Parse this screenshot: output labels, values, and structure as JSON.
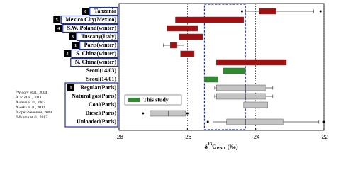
{
  "chart_data": {
    "type": "boxplot",
    "xlim": [
      -28,
      -22
    ],
    "xticks": [
      -28,
      -26,
      -24,
      -22
    ],
    "grid": true,
    "x_label": {
      "symbol": "δ",
      "sup": "13",
      "base": "C",
      "sub": "PBD",
      "unit": "(‰)"
    },
    "highlight": [
      -25.5,
      -24.3
    ],
    "legend": {
      "name": "This study",
      "color": "#2e8b2e"
    },
    "rows": [
      {
        "label": "Tanzania",
        "ref": "6",
        "color": "#a01010",
        "q1": -23.9,
        "q3": -23.4,
        "whisker_low": -24.3,
        "whisker_high": -22.3,
        "outliers": [
          -24.4,
          -22.1
        ]
      },
      {
        "label": "Mexico City(Mexico)",
        "ref": "5",
        "color": "#a01010",
        "q1": -26.35,
        "q3": -24.35
      },
      {
        "label": "S.W. Poland(winter)",
        "ref": "4",
        "color": "#a01010",
        "q1": -26.6,
        "q3": -25.7
      },
      {
        "label": "Tuscany(Italy)",
        "ref": "3",
        "color": "#a01010",
        "q1": -26.25,
        "q3": -25.55
      },
      {
        "label": "Paris(winter)",
        "ref": "1",
        "color": "#a01010",
        "q1": -26.5,
        "q3": -26.3,
        "whisker_low": -26.7,
        "whisker_high": -26.1
      },
      {
        "label": "S. China(winter)",
        "ref": "2",
        "color": "#a01010",
        "q1": -26.2,
        "q3": -25.8
      },
      {
        "label": "N. China(winter)",
        "color": "#a01010",
        "q1": -25.15,
        "q3": -23.1
      },
      {
        "label": "Seoul(14/03)",
        "color": "#2e8b2e",
        "q1": -24.95,
        "q3": -24.3
      },
      {
        "label": "Seoul(14/01)",
        "color": "#2e8b2e",
        "q1": -25.5,
        "q3": -25.1
      },
      {
        "label": "Regular(Paris)",
        "ref": "1",
        "color": "#c4c4c4",
        "q1": -25.15,
        "q3": -23.7,
        "median": -24.3,
        "whisker_low": -25.2,
        "whisker_high": -23.5
      },
      {
        "label": "Natural gas(Paris)",
        "color": "#c4c4c4",
        "q1": -25.15,
        "q3": -23.7,
        "median": -24.3,
        "whisker_low": -25.2,
        "whisker_high": -23.5
      },
      {
        "label": "Coal(Paris)",
        "color": "#c4c4c4",
        "q1": -24.35,
        "q3": -23.65
      },
      {
        "label": "Diesel(Paris)",
        "color": "#c4c4c4",
        "q1": -27.1,
        "q3": -26.05,
        "median": -26.55,
        "whisker_low": -27.1,
        "whisker_high": -26.05,
        "outliers": [
          -27.3,
          -26.0
        ]
      },
      {
        "label": "Unloaded(Paris)",
        "color": "#c4c4c4",
        "q1": -24.85,
        "q3": -23.2,
        "median": -24.3,
        "whisker_low": -25.25,
        "whisker_high": -22.15,
        "outliers": [
          -25.4,
          -22.0
        ]
      }
    ],
    "references": [
      {
        "num": "1",
        "text": "Widory et al., 2004"
      },
      {
        "num": "2",
        "text": "Cao et al., 2011"
      },
      {
        "num": "3",
        "text": "Grassi et al., 2007"
      },
      {
        "num": "4",
        "text": "Górka et al., 2012"
      },
      {
        "num": "5",
        "text": "Lopez-Veneroni, 2009"
      },
      {
        "num": "6",
        "text": "Mkoma et al., 2013"
      }
    ]
  }
}
